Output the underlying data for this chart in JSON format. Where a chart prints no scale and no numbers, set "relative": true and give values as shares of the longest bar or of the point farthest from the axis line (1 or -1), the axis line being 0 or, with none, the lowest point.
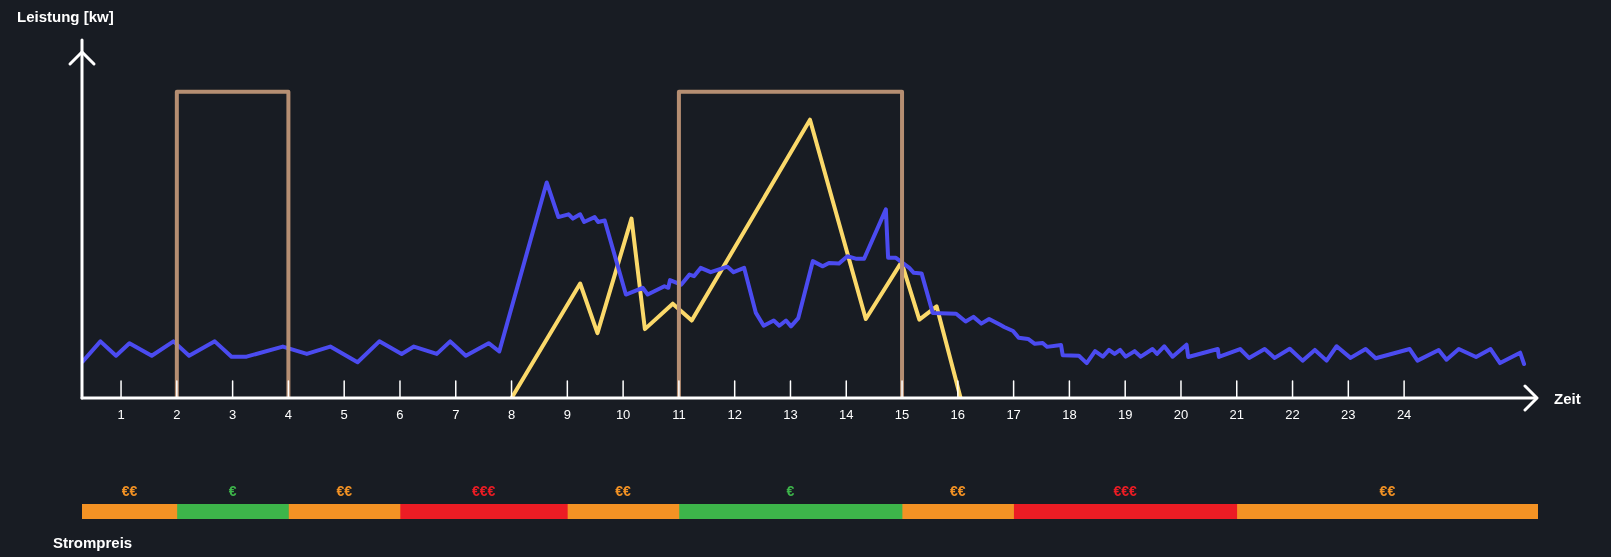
{
  "chart_data": [
    {
      "type": "line",
      "relative": true,
      "ylabel": "Leistung [kw]",
      "xlabel": "Zeit",
      "xlim": [
        0.3,
        26.4
      ],
      "xticks": [
        1,
        2,
        3,
        4,
        5,
        6,
        7,
        8,
        9,
        10,
        11,
        12,
        13,
        14,
        15,
        16,
        17,
        18,
        19,
        20,
        21,
        22,
        23,
        24
      ],
      "grid": false,
      "legend": false,
      "marker": "none",
      "line_style": "solid",
      "series": [
        {
          "color": "#b58e72",
          "x": [
            2,
            2,
            4,
            4,
            7,
            11,
            11,
            15,
            15
          ],
          "values": [
            0,
            1,
            1,
            0,
            null,
            0,
            1,
            1,
            0
          ]
        },
        {
          "color": "#4b4bf0",
          "x": [
            0.31,
            0.63,
            0.91,
            1.15,
            1.55,
            1.94,
            2.22,
            2.68,
            2.98,
            3.25,
            3.9,
            4.33,
            4.75,
            5.24,
            5.63,
            6.03,
            6.25,
            6.66,
            6.9,
            7.18,
            7.59,
            7.78,
            8.63,
            8.84,
            9.02,
            9.1,
            9.23,
            9.3,
            9.49,
            9.55,
            9.67,
            10.05,
            10.35,
            10.44,
            10.74,
            10.81,
            10.84,
            11.04,
            11.19,
            11.27,
            11.39,
            11.57,
            11.87,
            11.98,
            12.17,
            12.38,
            12.52,
            12.7,
            12.8,
            12.92,
            13.01,
            13.14,
            13.4,
            13.58,
            13.69,
            13.87,
            14.02,
            14.17,
            14.32,
            14.71,
            14.75,
            14.89,
            15.13,
            15.21,
            15.35,
            15.55,
            15.97,
            16.14,
            16.28,
            16.42,
            16.56,
            16.76,
            16.83,
            16.99,
            17.09,
            17.26,
            17.38,
            17.52,
            17.6,
            17.85,
            17.88,
            18.17,
            18.31,
            18.46,
            18.6,
            18.71,
            18.81,
            18.91,
            19.01,
            19.17,
            19.28,
            19.49,
            19.57,
            19.7,
            19.85,
            20.1,
            20.13,
            20.66,
            20.68,
            21.06,
            21.22,
            21.5,
            21.68,
            21.95,
            22.18,
            22.4,
            22.61,
            22.79,
            23.04,
            23.31,
            23.49,
            24.1,
            24.24,
            24.62,
            24.76,
            24.98,
            25.29,
            25.55,
            25.72,
            26.08,
            26.15
          ],
          "values": [
            0.119,
            0.185,
            0.138,
            0.179,
            0.138,
            0.185,
            0.138,
            0.185,
            0.135,
            0.135,
            0.168,
            0.144,
            0.168,
            0.117,
            0.185,
            0.144,
            0.168,
            0.144,
            0.185,
            0.138,
            0.179,
            0.152,
            0.704,
            0.591,
            0.6,
            0.586,
            0.6,
            0.575,
            0.591,
            0.575,
            0.58,
            0.338,
            0.36,
            0.338,
            0.365,
            0.36,
            0.385,
            0.37,
            0.403,
            0.398,
            0.425,
            0.411,
            0.429,
            0.411,
            0.425,
            0.278,
            0.236,
            0.253,
            0.236,
            0.253,
            0.234,
            0.261,
            0.447,
            0.43,
            0.441,
            0.439,
            0.463,
            0.455,
            0.455,
            0.616,
            0.458,
            0.458,
            0.425,
            0.409,
            0.407,
            0.278,
            0.275,
            0.25,
            0.265,
            0.243,
            0.258,
            0.239,
            0.232,
            0.219,
            0.197,
            0.193,
            0.177,
            0.18,
            0.167,
            0.173,
            0.14,
            0.138,
            0.114,
            0.153,
            0.135,
            0.157,
            0.144,
            0.157,
            0.135,
            0.153,
            0.135,
            0.16,
            0.144,
            0.169,
            0.135,
            0.174,
            0.134,
            0.16,
            0.134,
            0.16,
            0.131,
            0.16,
            0.131,
            0.161,
            0.122,
            0.157,
            0.122,
            0.169,
            0.131,
            0.16,
            0.13,
            0.16,
            0.122,
            0.157,
            0.125,
            0.16,
            0.134,
            0.16,
            0.114,
            0.148,
            0.111
          ]
        },
        {
          "color": "#fbd96a",
          "x": [
            8.0,
            9.23,
            9.54,
            10.15,
            10.39,
            10.89,
            11.23,
            13.35,
            14.35,
            14.99,
            15.31,
            15.62,
            16.05
          ],
          "values": [
            0,
            0.374,
            0.212,
            0.586,
            0.225,
            0.308,
            0.253,
            0.909,
            0.258,
            0.444,
            0.256,
            0.299,
            0
          ]
        }
      ]
    },
    {
      "type": "bar",
      "orientation": "horizontal",
      "categories": [
        null
      ],
      "xlim": [
        0.3,
        26.4
      ],
      "legend": false,
      "series": [
        {
          "name": "€€",
          "color": "#f39224",
          "base": [
            0.3
          ],
          "values": [
            1.7
          ]
        },
        {
          "name": "€",
          "color": "#3db54a",
          "base": [
            2
          ],
          "values": [
            2
          ]
        },
        {
          "name": "€€",
          "color": "#f39224",
          "base": [
            4
          ],
          "values": [
            2
          ]
        },
        {
          "name": "€€€",
          "color": "#ec1c24",
          "base": [
            6
          ],
          "values": [
            3
          ]
        },
        {
          "name": "€€",
          "color": "#f39224",
          "base": [
            9
          ],
          "values": [
            2
          ]
        },
        {
          "name": "€",
          "color": "#3db54a",
          "base": [
            11
          ],
          "values": [
            4
          ]
        },
        {
          "name": "€€",
          "color": "#f39224",
          "base": [
            15
          ],
          "values": [
            2
          ]
        },
        {
          "name": "€€€",
          "color": "#ec1c24",
          "base": [
            17
          ],
          "values": [
            4
          ]
        },
        {
          "name": "€€",
          "color": "#f39224",
          "base": [
            21
          ],
          "values": [
            5.4
          ]
        }
      ],
      "annotations": [
        "Strompreis"
      ]
    }
  ]
}
